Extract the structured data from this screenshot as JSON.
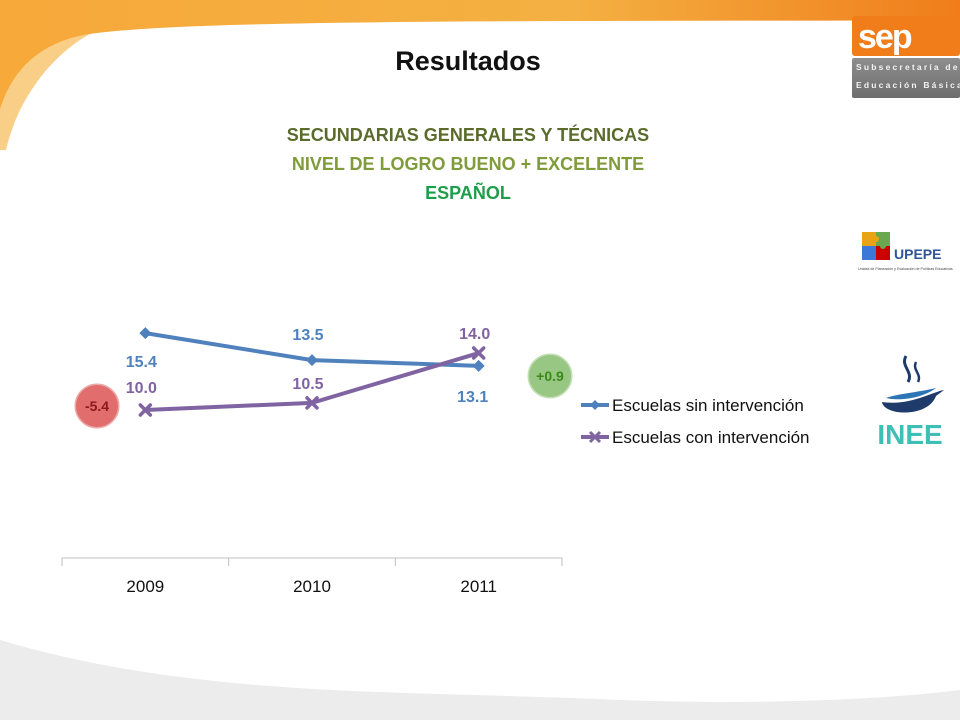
{
  "header": {
    "title": "Resultados",
    "subtitle_1": "SECUNDARIAS GENERALES Y TÉCNICAS",
    "subtitle_2": "NIVEL DE LOGRO BUENO + EXCELENTE",
    "subtitle_3": "ESPAÑOL"
  },
  "logos": {
    "sep_wordmark": "sep",
    "sep_line_1": "Subsecretaría de",
    "sep_line_2": "Educación Básica",
    "upepe_name": "UPEPE",
    "upepe_caption": "Unidad de Planeación y Evaluación de Políticas Educativas",
    "inee_name": "INEE"
  },
  "colors": {
    "accent_orange": "#f07d1a",
    "series_blue": "#4f81bd",
    "series_purple": "#8064a2",
    "badge_red": "#e06666",
    "badge_green": "#93c47d"
  },
  "chart_data": {
    "type": "line",
    "categories": [
      "2009",
      "2010",
      "2011"
    ],
    "series": [
      {
        "name": "Escuelas sin intervención",
        "values": [
          15.4,
          13.5,
          13.1
        ],
        "labels": [
          "15.4",
          "13.5",
          "13.1"
        ],
        "color": "#4f81bd",
        "marker": "diamond"
      },
      {
        "name": "Escuelas con intervención",
        "values": [
          10.0,
          10.5,
          14.0
        ],
        "labels": [
          "10.0",
          "10.5",
          "14.0"
        ],
        "color": "#8064a2",
        "marker": "x"
      }
    ],
    "ylim": [
      -0.4,
      15.9
    ],
    "grid": false,
    "legend_position": "right",
    "annotations": [
      {
        "text": "-5.4",
        "fill": "#e06666",
        "text_color": "#8b1a1a",
        "near": "2009"
      },
      {
        "text": "+0.9",
        "fill": "#93c47d",
        "text_color": "#3a8a1a",
        "near": "2011"
      }
    ]
  }
}
